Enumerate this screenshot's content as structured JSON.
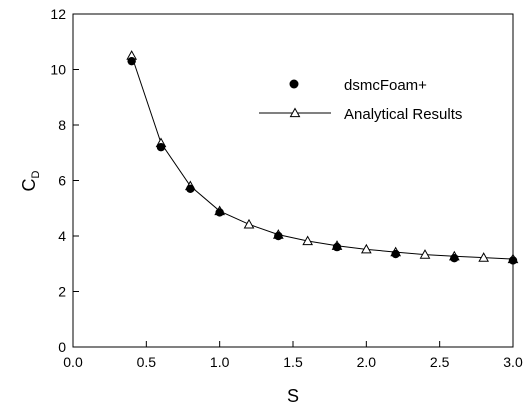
{
  "chart_data": {
    "type": "scatter",
    "title": "",
    "xlabel": "S",
    "ylabel": "C",
    "ylabel_subscript": "D",
    "xlim": [
      0.0,
      3.0
    ],
    "ylim": [
      0,
      12
    ],
    "x_ticks": [
      "0.0",
      "0.5",
      "1.0",
      "1.5",
      "2.0",
      "2.5",
      "3.0"
    ],
    "y_ticks": [
      "0",
      "2",
      "4",
      "6",
      "8",
      "10",
      "12"
    ],
    "grid": false,
    "legend_position": "top-right",
    "series": [
      {
        "name": "dsmcFoam+",
        "marker": "filled-circle",
        "line": false,
        "x": [
          0.4,
          0.6,
          0.8,
          1.0,
          1.4,
          1.8,
          2.2,
          2.6,
          3.0
        ],
        "y": [
          10.3,
          7.2,
          5.7,
          4.85,
          4.0,
          3.6,
          3.35,
          3.2,
          3.12
        ]
      },
      {
        "name": "Analytical Results",
        "marker": "open-triangle",
        "line": true,
        "x": [
          0.4,
          0.6,
          0.8,
          1.0,
          1.2,
          1.4,
          1.6,
          1.8,
          2.0,
          2.2,
          2.4,
          2.6,
          2.8,
          3.0
        ],
        "y": [
          10.5,
          7.35,
          5.8,
          4.9,
          4.42,
          4.05,
          3.82,
          3.65,
          3.52,
          3.42,
          3.33,
          3.27,
          3.22,
          3.17
        ]
      }
    ]
  }
}
